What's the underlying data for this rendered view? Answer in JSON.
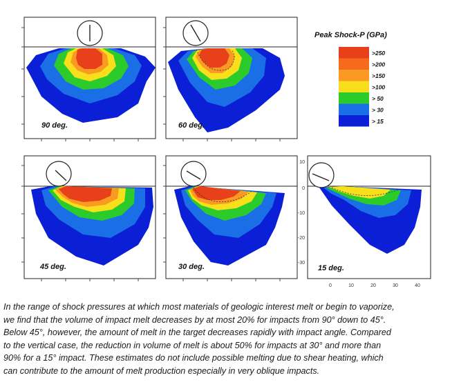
{
  "legend": {
    "title": "Peak Shock-P (GPa)",
    "items": [
      {
        "label": ">250",
        "color": "#e8401a"
      },
      {
        "label": ">200",
        "color": "#f56a1c"
      },
      {
        "label": ">150",
        "color": "#fb9a22"
      },
      {
        "label": ">100",
        "color": "#f8df1c"
      },
      {
        "label": "> 50",
        "color": "#2ccb2c"
      },
      {
        "label": "> 30",
        "color": "#1a6fe6"
      },
      {
        "label": "> 15",
        "color": "#0a1fd6"
      }
    ]
  },
  "panels": [
    {
      "label": "90 deg.",
      "angle": 90
    },
    {
      "label": "60 deg.",
      "angle": 60
    },
    {
      "label": "45 deg.",
      "angle": 45
    },
    {
      "label": "30 deg.",
      "angle": 30
    },
    {
      "label": "15 deg.",
      "angle": 15
    }
  ],
  "axis15": {
    "y_ticks": [
      "10",
      "0",
      "-10",
      "-20",
      "-30"
    ],
    "x_ticks": [
      "0",
      "10",
      "20",
      "30",
      "40"
    ]
  },
  "caption": {
    "lines": [
      "In the range of shock pressures at which most materials of geologic interest melt or begin to vaporize,",
      "we find that the volume of impact melt decreases by at most 20% for impacts from 90° down to 45°.",
      "Below 45°, however, the amount of melt in the target decreases rapidly with impact angle. Compared",
      "to the vertical case, the reduction in volume of melt is about 50% for impacts at 30° and more than",
      "90% for a 15° impact. These estimates do not include possible melting due to shear heating, which",
      "can contribute to the amount of melt production especially in very oblique impacts."
    ]
  }
}
